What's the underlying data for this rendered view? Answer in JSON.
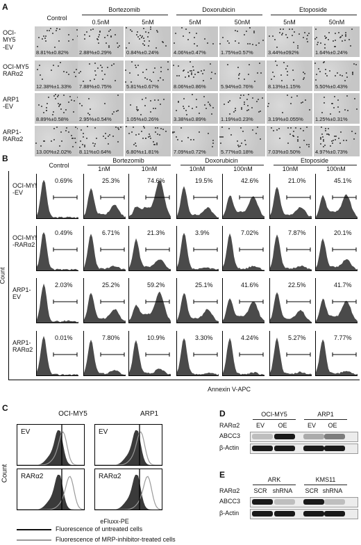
{
  "panelA": {
    "label": "A",
    "control_header": "Control",
    "drug_headers": [
      "Bortezomib",
      "Doxorubicin",
      "Etoposide"
    ],
    "conc_headers": [
      "0.5nM",
      "5nM",
      "5nM",
      "50nM",
      "5nM",
      "50nM"
    ],
    "rows": [
      {
        "label_lines": [
          "OCI-",
          "MY5",
          "-EV"
        ],
        "values": [
          "8.81%±0.82%",
          "2.88%±0.29%",
          "0.84%±0.24%",
          "4.06%±0.47%",
          "1.75%±0.57%",
          "3.44%±092%",
          "1.64%±0.24%"
        ]
      },
      {
        "label_lines": [
          "OCI-MY5",
          "RARα2"
        ],
        "values": [
          "12.38%±1.33%",
          "7.88%±0.75%",
          "5.81%±0.67%",
          "8.06%±0.86%",
          "5.94%±0.76%",
          "8.13%±1.15%",
          "5.50%±0.43%"
        ]
      },
      {
        "label_lines": [
          "ARP1",
          "-EV"
        ],
        "values": [
          "8.89%±0.58%",
          "2.95%±0.54%",
          "1.05%±0.26%",
          "3.38%±0.89%",
          "1.19%±0.23%",
          "3.19%±0.055%",
          "1.25%±0.31%"
        ]
      },
      {
        "label_lines": [
          "ARP1-",
          "RARα2"
        ],
        "values": [
          "13.00%±2.02%",
          "8.11%±0.64%",
          "6.80%±1.81%",
          "7.09%±0.72%",
          "5.77%±0.18%",
          "7.03%±0.50%",
          "4.97%±0.73%"
        ]
      }
    ]
  },
  "panelB": {
    "label": "B",
    "control_header": "Control",
    "drug_headers": [
      "Bortezomib",
      "Doxorubicin",
      "Etoposide"
    ],
    "conc_headers": [
      "1nM",
      "10nM",
      "10nM",
      "100nM",
      "10nM",
      "100nM"
    ],
    "ylabel": "Count",
    "xlabel": "Annexin V-APC",
    "rows": [
      {
        "label_lines": [
          "OCI-MY5",
          "-EV"
        ],
        "values": [
          "0.69%",
          "25.3%",
          "74.6%",
          "19.5%",
          "42.6%",
          "21.0%",
          "45.1%"
        ]
      },
      {
        "label_lines": [
          "OCI-MY5",
          "-RARα2"
        ],
        "values": [
          "0.49%",
          "6.71%",
          "21.3%",
          "3.9%",
          "7.02%",
          "7.87%",
          "20.1%"
        ]
      },
      {
        "label_lines": [
          "ARP1-",
          "EV"
        ],
        "values": [
          "2.03%",
          "25.2%",
          "59.2%",
          "25.1%",
          "41.6%",
          "22.5%",
          "41.7%"
        ]
      },
      {
        "label_lines": [
          "ARP1-",
          "RARα2"
        ],
        "values": [
          "0.01%",
          "7.80%",
          "10.9%",
          "3.30%",
          "4.24%",
          "5.27%",
          "7.77%"
        ]
      }
    ]
  },
  "panelC": {
    "label": "C",
    "columns": [
      "OCI-MY5",
      "ARP1"
    ],
    "rows": [
      "EV",
      "RARα2"
    ],
    "ylabel": "Count",
    "xlabel": "eFluxx-PE",
    "legend": [
      {
        "text": "Fluorescence of untreated cells",
        "color": "#111111"
      },
      {
        "text": "Fluorescence of MRP-inhibitor-treated cells",
        "color": "#9a9a9a"
      }
    ]
  },
  "panelD": {
    "label": "D",
    "groups": [
      "OCI-MY5",
      "ARP1"
    ],
    "row_header": "RARα2",
    "lanes": [
      "EV",
      "OE",
      "EV",
      "OE"
    ],
    "blots": [
      "ABCC3",
      "β-Actin"
    ]
  },
  "panelE": {
    "label": "E",
    "groups": [
      "ARK",
      "KMS11"
    ],
    "row_header": "RARα2",
    "lanes": [
      "SCR",
      "shRNA",
      "SCR",
      "shRNA"
    ],
    "blots": [
      "ABCC3",
      "β-Actin"
    ]
  },
  "colors": {
    "histogram_fill": "#4a4a4a",
    "tile_bg": "#cfcfcf",
    "band": "#1a1a1a"
  }
}
